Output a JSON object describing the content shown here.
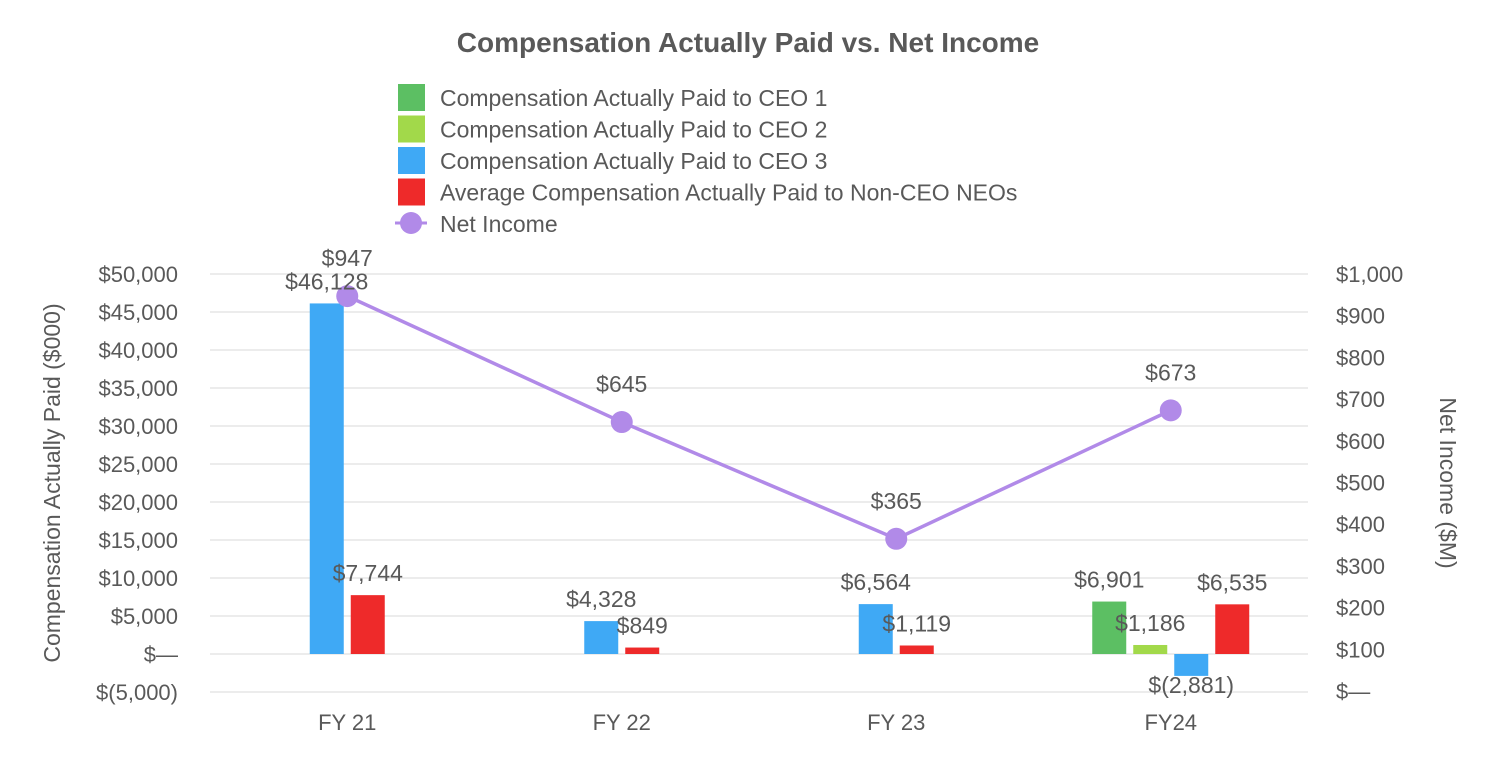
{
  "chart_data": {
    "type": "bar",
    "title": "Compensation Actually Paid vs. Net Income",
    "categories": [
      "FY 21",
      "FY 22",
      "FY 23",
      "FY24"
    ],
    "ylabel": "Compensation Actually Paid ($000)",
    "y2label": "Net Income ($M)",
    "ylim": [
      -5000,
      50000
    ],
    "y2lim": [
      0,
      1000
    ],
    "yticks": [
      -5000,
      0,
      5000,
      10000,
      15000,
      20000,
      25000,
      30000,
      35000,
      40000,
      45000,
      50000
    ],
    "ytick_labels": [
      "$(5,000)",
      "$—",
      "$5,000",
      "$10,000",
      "$15,000",
      "$20,000",
      "$25,000",
      "$30,000",
      "$35,000",
      "$40,000",
      "$45,000",
      "$50,000"
    ],
    "y2ticks": [
      0,
      100,
      200,
      300,
      400,
      500,
      600,
      700,
      800,
      900,
      1000
    ],
    "y2tick_labels": [
      "$—",
      "$100",
      "$200",
      "$300",
      "$400",
      "$500",
      "$600",
      "$700",
      "$800",
      "$900",
      "$1,000"
    ],
    "grid": true,
    "legend_position": "top",
    "series": [
      {
        "name": "Compensation Actually Paid to CEO 1",
        "color": "#5cbf63",
        "values": [
          null,
          null,
          null,
          6901
        ],
        "labels": [
          "",
          "",
          "",
          "$6,901"
        ]
      },
      {
        "name": "Compensation Actually Paid to CEO 2",
        "color": "#a2d94a",
        "values": [
          null,
          null,
          null,
          1186
        ],
        "labels": [
          "",
          "",
          "",
          "$1,186"
        ]
      },
      {
        "name": "Compensation Actually Paid to CEO 3",
        "color": "#3fa9f5",
        "values": [
          46128,
          4328,
          6564,
          -2881
        ],
        "labels": [
          "$46,128",
          "$4,328",
          "$6,564",
          "$(2,881)"
        ]
      },
      {
        "name": "Average Compensation Actually Paid to Non-CEO NEOs",
        "color": "#ee2a2a",
        "values": [
          7744,
          849,
          1119,
          6535
        ],
        "labels": [
          "$7,744",
          "$849",
          "$1,119",
          "$6,535"
        ]
      }
    ],
    "line_series": {
      "name": "Net Income",
      "color": "#b18ae8",
      "axis": "right",
      "values": [
        947,
        645,
        365,
        673
      ],
      "labels": [
        "$947",
        "$645",
        "$365",
        "$673"
      ]
    }
  }
}
